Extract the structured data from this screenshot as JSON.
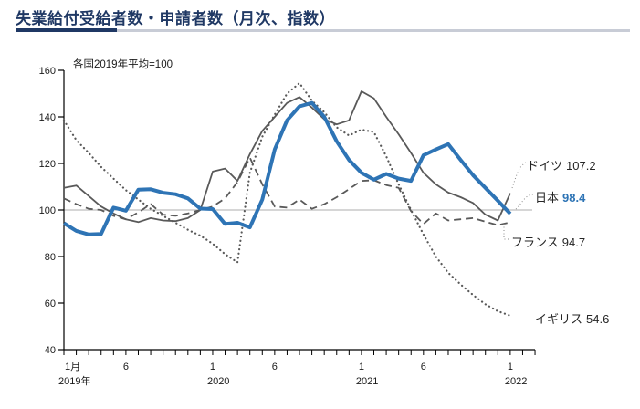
{
  "title": "失業給付受給者数・申請者数（月次、指数）",
  "note": "各国2019年平均=100",
  "colors": {
    "title_navy": "#1F3864",
    "underline_silver": "#C8CCD6",
    "japan_blue": "#2E74B5",
    "line_gray": "#595959",
    "reference_line_gray": "#ADADAD",
    "axis_black": "#000000"
  },
  "end_labels": [
    {
      "id": "germany",
      "name": "ドイツ",
      "value": "107.2"
    },
    {
      "id": "japan",
      "name": "日本",
      "value": "98.4"
    },
    {
      "id": "france",
      "name": "フランス",
      "value": "94.7"
    },
    {
      "id": "uk",
      "name": "イギリス",
      "value": "54.6"
    }
  ],
  "chart_data": {
    "type": "line",
    "title": "失業給付受給者数・申請者数（月次、指数）",
    "subtitle_note": "各国2019年平均=100",
    "ylim": [
      40,
      160
    ],
    "y_ticks": [
      40,
      60,
      80,
      100,
      120,
      140,
      160
    ],
    "reference_line": 100,
    "grid": "off",
    "legend_position": "line-end-labels-right",
    "x": [
      "2019-01",
      "2019-02",
      "2019-03",
      "2019-04",
      "2019-05",
      "2019-06",
      "2019-07",
      "2019-08",
      "2019-09",
      "2019-10",
      "2019-11",
      "2019-12",
      "2020-01",
      "2020-02",
      "2020-03",
      "2020-04",
      "2020-05",
      "2020-06",
      "2020-07",
      "2020-08",
      "2020-09",
      "2020-10",
      "2020-11",
      "2020-12",
      "2021-01",
      "2021-02",
      "2021-03",
      "2021-04",
      "2021-05",
      "2021-06",
      "2021-07",
      "2021-08",
      "2021-09",
      "2021-10",
      "2021-11",
      "2021-12",
      "2022-01"
    ],
    "x_axis": {
      "n_ticks": 39,
      "month_labels": [
        {
          "i": 0,
          "t": "1月"
        },
        {
          "i": 5,
          "t": "6"
        },
        {
          "i": 12,
          "t": "1"
        },
        {
          "i": 17,
          "t": "6"
        },
        {
          "i": 24,
          "t": "1"
        },
        {
          "i": 29,
          "t": "6"
        },
        {
          "i": 36,
          "t": "1"
        }
      ],
      "year_labels": [
        {
          "i": 0,
          "t": "2019年"
        },
        {
          "i": 12,
          "t": "2020"
        },
        {
          "i": 24,
          "t": "2021"
        },
        {
          "i": 36,
          "t": "2022"
        }
      ]
    },
    "series": [
      {
        "id": "uk",
        "name": "イギリス",
        "end_value": 54.6,
        "color": "#595959",
        "style": "dotted",
        "width": 2.2,
        "values": [
          138.5,
          130.0,
          124.5,
          118.5,
          113.5,
          108.5,
          104.5,
          100.5,
          97.5,
          94.5,
          91.5,
          89.0,
          85.5,
          81.0,
          77.5,
          116.0,
          131.5,
          141.0,
          150.0,
          154.5,
          147.0,
          142.0,
          135.5,
          132.0,
          134.5,
          133.5,
          123.0,
          111.0,
          100.0,
          89.5,
          80.0,
          73.0,
          68.0,
          63.5,
          59.5,
          56.5,
          54.6
        ]
      },
      {
        "id": "france",
        "name": "フランス",
        "end_value": 94.7,
        "color": "#595959",
        "style": "dashed",
        "width": 1.8,
        "values": [
          105.0,
          102.5,
          100.5,
          100.0,
          97.5,
          96.0,
          99.0,
          102.5,
          98.0,
          97.5,
          98.5,
          100.0,
          101.5,
          105.0,
          112.0,
          122.5,
          111.0,
          101.5,
          101.0,
          104.5,
          100.5,
          102.5,
          105.5,
          109.0,
          112.5,
          112.8,
          110.7,
          109.5,
          99.5,
          94.0,
          98.5,
          95.5,
          96.0,
          96.5,
          95.0,
          93.5,
          94.7
        ]
      },
      {
        "id": "germany",
        "name": "ドイツ",
        "end_value": 107.2,
        "color": "#595959",
        "style": "solid",
        "width": 1.8,
        "values": [
          109.5,
          110.5,
          106.0,
          101.5,
          98.5,
          96.0,
          94.8,
          96.5,
          95.5,
          95.2,
          96.5,
          100.0,
          116.5,
          117.8,
          112.5,
          124.0,
          134.0,
          140.0,
          146.0,
          148.5,
          144.0,
          139.0,
          136.8,
          138.5,
          151.0,
          148.0,
          140.0,
          132.5,
          124.5,
          116.0,
          111.0,
          107.5,
          105.5,
          103.0,
          98.0,
          95.5,
          107.2
        ]
      },
      {
        "id": "japan",
        "name": "日本",
        "end_value": 98.4,
        "color": "#2E74B5",
        "style": "solid",
        "width": 4,
        "values": [
          94.3,
          91.0,
          89.5,
          89.7,
          101.0,
          99.7,
          108.7,
          108.9,
          107.4,
          106.8,
          105.0,
          100.6,
          100.4,
          94.0,
          94.5,
          92.5,
          104.5,
          126.0,
          138.5,
          144.5,
          146.0,
          140.0,
          129.5,
          121.5,
          116.0,
          113.0,
          115.5,
          113.5,
          112.5,
          123.5,
          126.0,
          128.3,
          121.5,
          115.0,
          109.5,
          104.0,
          98.4
        ]
      }
    ]
  }
}
